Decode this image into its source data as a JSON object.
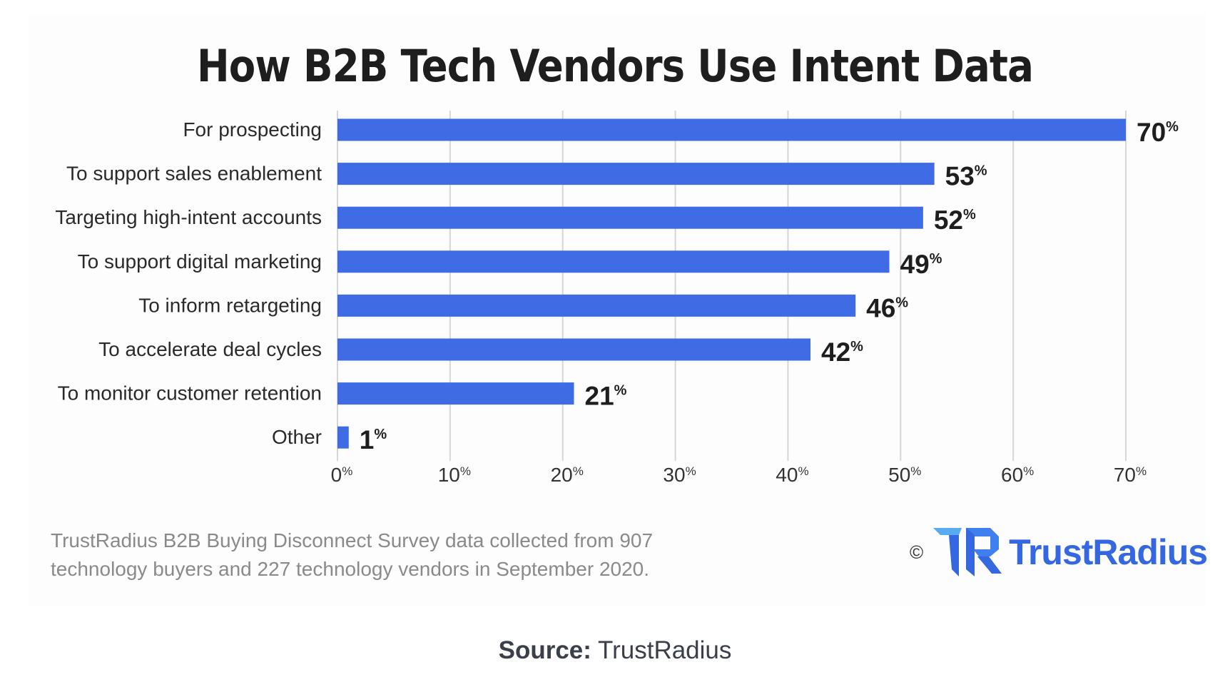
{
  "chart_data": {
    "type": "bar",
    "orientation": "horizontal",
    "title": "How B2B Tech Vendors Use Intent Data",
    "categories": [
      "For prospecting",
      "To support sales enablement",
      "Targeting high-intent accounts",
      "To support digital marketing",
      "To inform retargeting",
      "To accelerate deal cycles",
      "To monitor customer retention",
      "Other"
    ],
    "values": [
      70,
      53,
      52,
      49,
      46,
      42,
      21,
      1
    ],
    "value_unit": "%",
    "xlim": [
      0,
      70
    ],
    "xticks": [
      0,
      10,
      20,
      30,
      40,
      50,
      60,
      70
    ],
    "xtick_labels": [
      "0",
      "10",
      "20",
      "30",
      "40",
      "50",
      "60",
      "70"
    ],
    "grid": "vertical",
    "bar_color": "#3f6be4",
    "xlabel": "",
    "ylabel": ""
  },
  "footnote": [
    "TrustRadius B2B Buying Disconnect Survey data collected from 907",
    "technology buyers and 227 technology vendors in September 2020."
  ],
  "logo": {
    "copyright": "©",
    "brand": "TrustRadius",
    "color": "#3467e0"
  },
  "source": {
    "label": "Source:",
    "value": "TrustRadius"
  }
}
